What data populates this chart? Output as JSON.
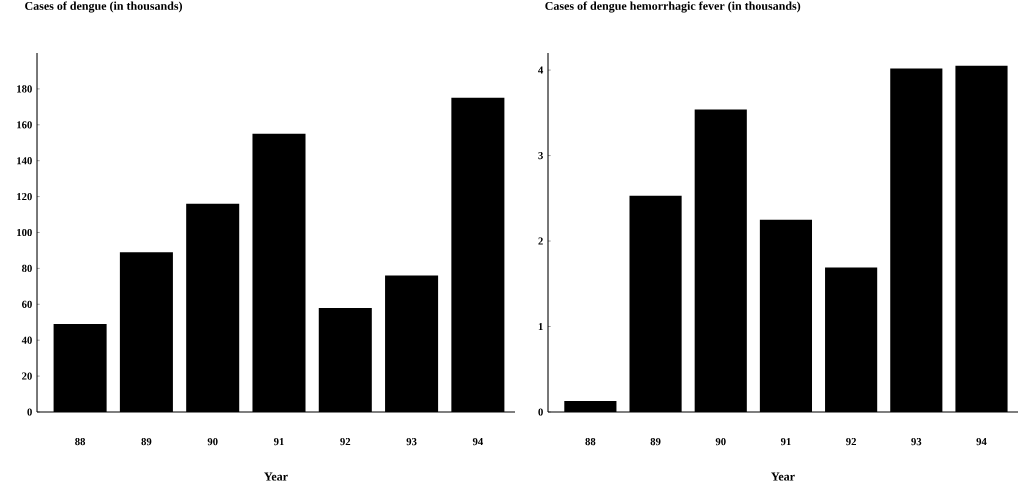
{
  "chart_data": [
    {
      "type": "bar",
      "title": "Cases of dengue (in thousands)",
      "xlabel": "Year",
      "categories": [
        "88",
        "89",
        "90",
        "91",
        "92",
        "93",
        "94"
      ],
      "values": [
        49,
        89,
        116,
        155,
        58,
        76,
        175
      ],
      "color": "#000000",
      "ylim": [
        0,
        200
      ],
      "yticks": [
        0,
        20,
        40,
        60,
        80,
        100,
        120,
        140,
        160,
        180
      ]
    },
    {
      "type": "bar",
      "title": "Cases of dengue hemorrhagic fever (in thousands)",
      "xlabel": "Year",
      "categories": [
        "88",
        "89",
        "90",
        "91",
        "92",
        "93",
        "94"
      ],
      "values": [
        0.13,
        2.53,
        3.54,
        2.25,
        1.69,
        4.02,
        4.05
      ],
      "color": "#000000",
      "ylim": [
        0,
        4.2
      ],
      "yticks": [
        0,
        1,
        2,
        3,
        4
      ]
    }
  ]
}
